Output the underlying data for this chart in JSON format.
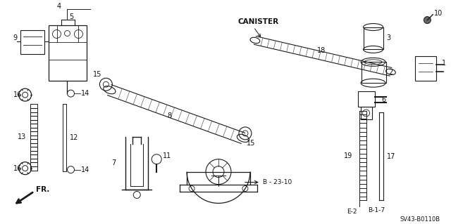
{
  "bg_color": "#ffffff",
  "line_color": "#1a1a1a",
  "text_color": "#111111",
  "diagram_code": "SV43-B0110B",
  "canister_label": "CANISTER",
  "b_23_10": "B - 23-10",
  "b_1_7": "B-1-7",
  "e_2": "E-2",
  "fr_label": "FR.",
  "figw": 6.4,
  "figh": 3.19,
  "dpi": 100
}
